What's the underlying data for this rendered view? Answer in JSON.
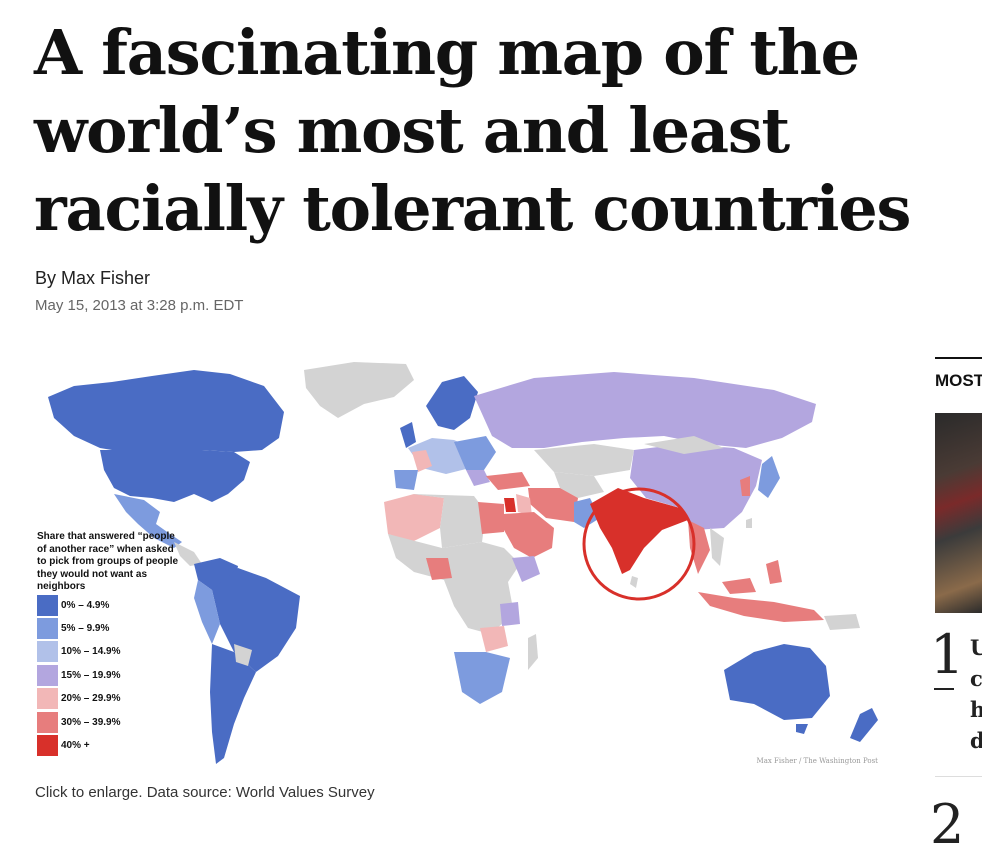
{
  "article": {
    "headline": "A fascinating map of the world’s most and least racially tolerant countries",
    "byline": "By Max Fisher",
    "timestamp": "May 15, 2013 at 3:28 p.m. EDT",
    "caption": "Click to enlarge. Data source: World Values Survey"
  },
  "map": {
    "legend_title": "Share that answered “people of another race” when asked to pick from groups of people they would not want as neighbors",
    "legend": [
      {
        "label": "0% – 4.9%",
        "color": "#4a6cc4"
      },
      {
        "label": "5% – 9.9%",
        "color": "#7d9bde"
      },
      {
        "label": "10% – 14.9%",
        "color": "#b1c1e9"
      },
      {
        "label": "15% – 19.9%",
        "color": "#b3a6df"
      },
      {
        "label": "20% – 29.9%",
        "color": "#f2b7b7"
      },
      {
        "label": "30% – 39.9%",
        "color": "#e77d7d"
      },
      {
        "label": "40% +",
        "color": "#d8302a"
      }
    ],
    "no_data_color": "#d3d3d3",
    "highlight_ring_color": "#d8302a",
    "credit": "Max Fisher / The Washington Post"
  },
  "sidebar": {
    "title": "MOST",
    "items": [
      {
        "rank": "1",
        "text": "U\nc\nh\nd"
      },
      {
        "rank": "2"
      }
    ]
  }
}
